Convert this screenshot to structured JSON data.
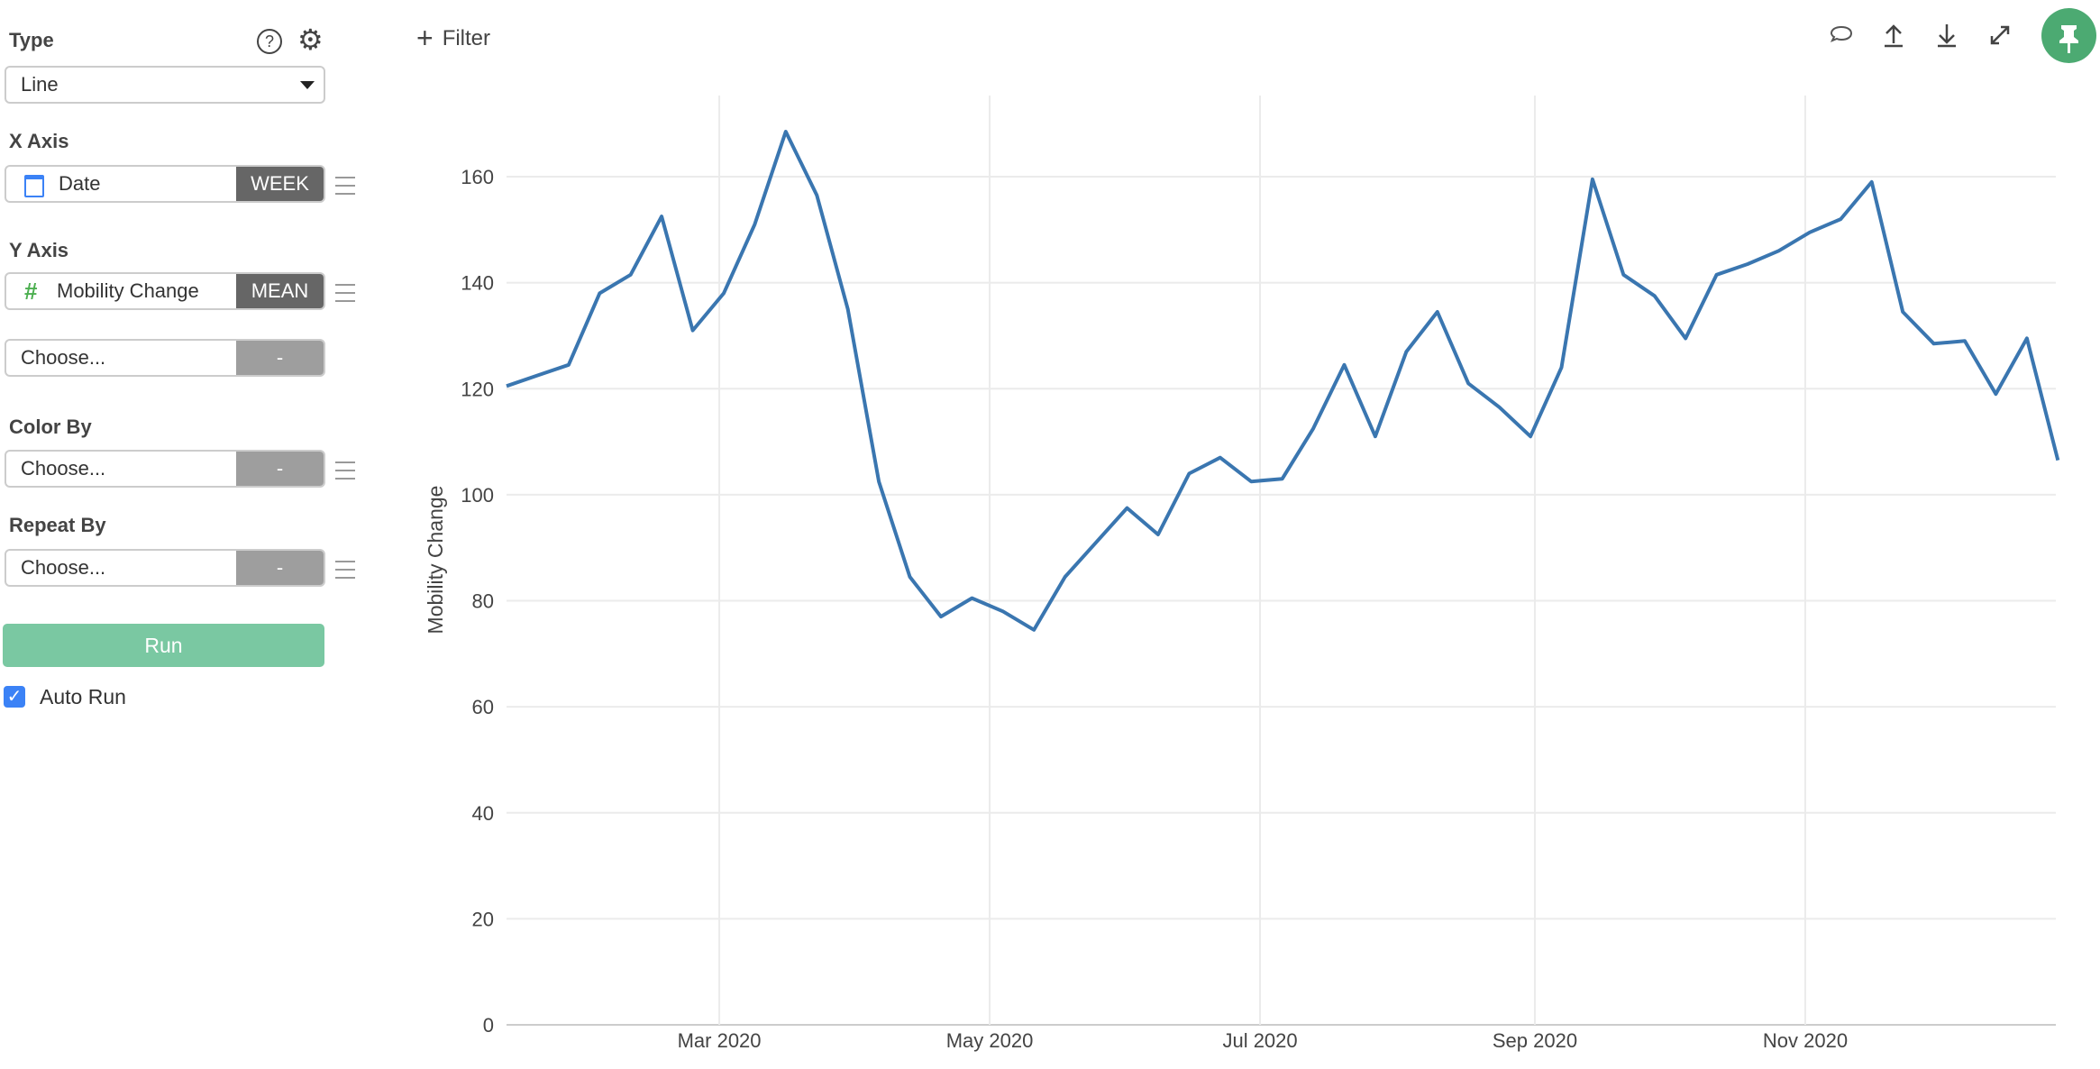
{
  "sidebar": {
    "type_label": "Type",
    "type_value": "Line",
    "x_axis_label": "X Axis",
    "x_field": "Date",
    "x_agg": "WEEK",
    "y_axis_label": "Y Axis",
    "y_field": "Mobility Change",
    "y_agg": "MEAN",
    "y2_placeholder": "Choose...",
    "y2_agg": "-",
    "color_by_label": "Color By",
    "color_by_placeholder": "Choose...",
    "color_by_agg": "-",
    "repeat_by_label": "Repeat By",
    "repeat_by_placeholder": "Choose...",
    "repeat_by_agg": "-",
    "run_label": "Run",
    "auto_run_label": "Auto Run",
    "auto_run_checked": true
  },
  "toolbar": {
    "filter_label": "Filter",
    "icons": [
      "comment-icon",
      "upload-icon",
      "download-icon",
      "expand-icon",
      "pin-icon"
    ]
  },
  "colors": {
    "line": "#3a76b0",
    "run": "#7ac8a2",
    "pin": "#4caa72",
    "accent_blue": "#3b82f6",
    "hash_green": "#4caf50"
  },
  "chart_data": {
    "type": "line",
    "title": "",
    "xlabel": "",
    "ylabel": "Mobility Change",
    "ylim": [
      0,
      175
    ],
    "yticks": [
      0,
      20,
      40,
      60,
      80,
      100,
      120,
      140,
      160
    ],
    "xticks": [
      {
        "date": "2020-03-01",
        "label": "Mar 2020"
      },
      {
        "date": "2020-05-01",
        "label": "May 2020"
      },
      {
        "date": "2020-07-01",
        "label": "Jul 2020"
      },
      {
        "date": "2020-09-01",
        "label": "Sep 2020"
      },
      {
        "date": "2020-11-01",
        "label": "Nov 2020"
      }
    ],
    "grid": true,
    "x_start": "2020-01-13",
    "x_interval": "week",
    "values": [
      120.5,
      122.5,
      124.5,
      138,
      141.5,
      152.5,
      131,
      138,
      151,
      168.5,
      156.5,
      135,
      102.5,
      84.5,
      77,
      80.5,
      78,
      74.5,
      84.5,
      91,
      97.5,
      92.5,
      104,
      107,
      102.5,
      103,
      112.5,
      124.5,
      111,
      127,
      134.5,
      121,
      116.5,
      111,
      124,
      159.5,
      141.5,
      137.5,
      129.5,
      141.5,
      143.5,
      146,
      149.5,
      152,
      159,
      134.5,
      128.5,
      129,
      119,
      129.5,
      106.5
    ]
  }
}
